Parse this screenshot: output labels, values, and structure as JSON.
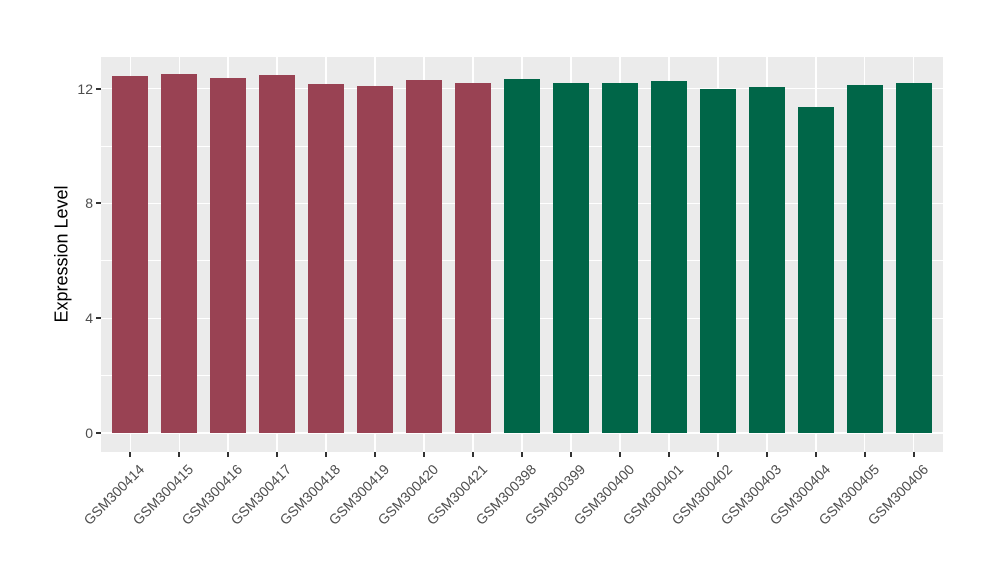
{
  "chart_data": {
    "type": "bar",
    "title": "",
    "xlabel": "",
    "ylabel": "Expression Level",
    "ylim": [
      0,
      13.1
    ],
    "yticks": [
      0,
      4,
      8,
      12
    ],
    "yticks_minor": [
      2,
      6,
      10
    ],
    "grid": true,
    "legend": false,
    "panel_bg": "#EBEBEB",
    "grid_major_color": "#FFFFFF",
    "grid_minor_color": "#FFFFFF",
    "tick_mark_color": "#333333",
    "tick_label_color": "#4D4D4D",
    "axis_title_color": "#000000",
    "group_colors": {
      "group1": "#994253",
      "group2": "#006648"
    },
    "categories": [
      "GSM300414",
      "GSM300415",
      "GSM300416",
      "GSM300417",
      "GSM300418",
      "GSM300419",
      "GSM300420",
      "GSM300421",
      "GSM300398",
      "GSM300399",
      "GSM300400",
      "GSM300401",
      "GSM300402",
      "GSM300403",
      "GSM300404",
      "GSM300405",
      "GSM300406"
    ],
    "bars": [
      {
        "label": "GSM300414",
        "value": 12.45,
        "group": "group1"
      },
      {
        "label": "GSM300415",
        "value": 12.5,
        "group": "group1"
      },
      {
        "label": "GSM300416",
        "value": 12.38,
        "group": "group1"
      },
      {
        "label": "GSM300417",
        "value": 12.47,
        "group": "group1"
      },
      {
        "label": "GSM300418",
        "value": 12.16,
        "group": "group1"
      },
      {
        "label": "GSM300419",
        "value": 12.08,
        "group": "group1"
      },
      {
        "label": "GSM300420",
        "value": 12.31,
        "group": "group1"
      },
      {
        "label": "GSM300421",
        "value": 12.19,
        "group": "group1"
      },
      {
        "label": "GSM300398",
        "value": 12.33,
        "group": "group2"
      },
      {
        "label": "GSM300399",
        "value": 12.21,
        "group": "group2"
      },
      {
        "label": "GSM300400",
        "value": 12.19,
        "group": "group2"
      },
      {
        "label": "GSM300401",
        "value": 12.26,
        "group": "group2"
      },
      {
        "label": "GSM300402",
        "value": 11.97,
        "group": "group2"
      },
      {
        "label": "GSM300403",
        "value": 12.07,
        "group": "group2"
      },
      {
        "label": "GSM300404",
        "value": 11.35,
        "group": "group2"
      },
      {
        "label": "GSM300405",
        "value": 12.11,
        "group": "group2"
      },
      {
        "label": "GSM300406",
        "value": 12.21,
        "group": "group2"
      }
    ]
  }
}
